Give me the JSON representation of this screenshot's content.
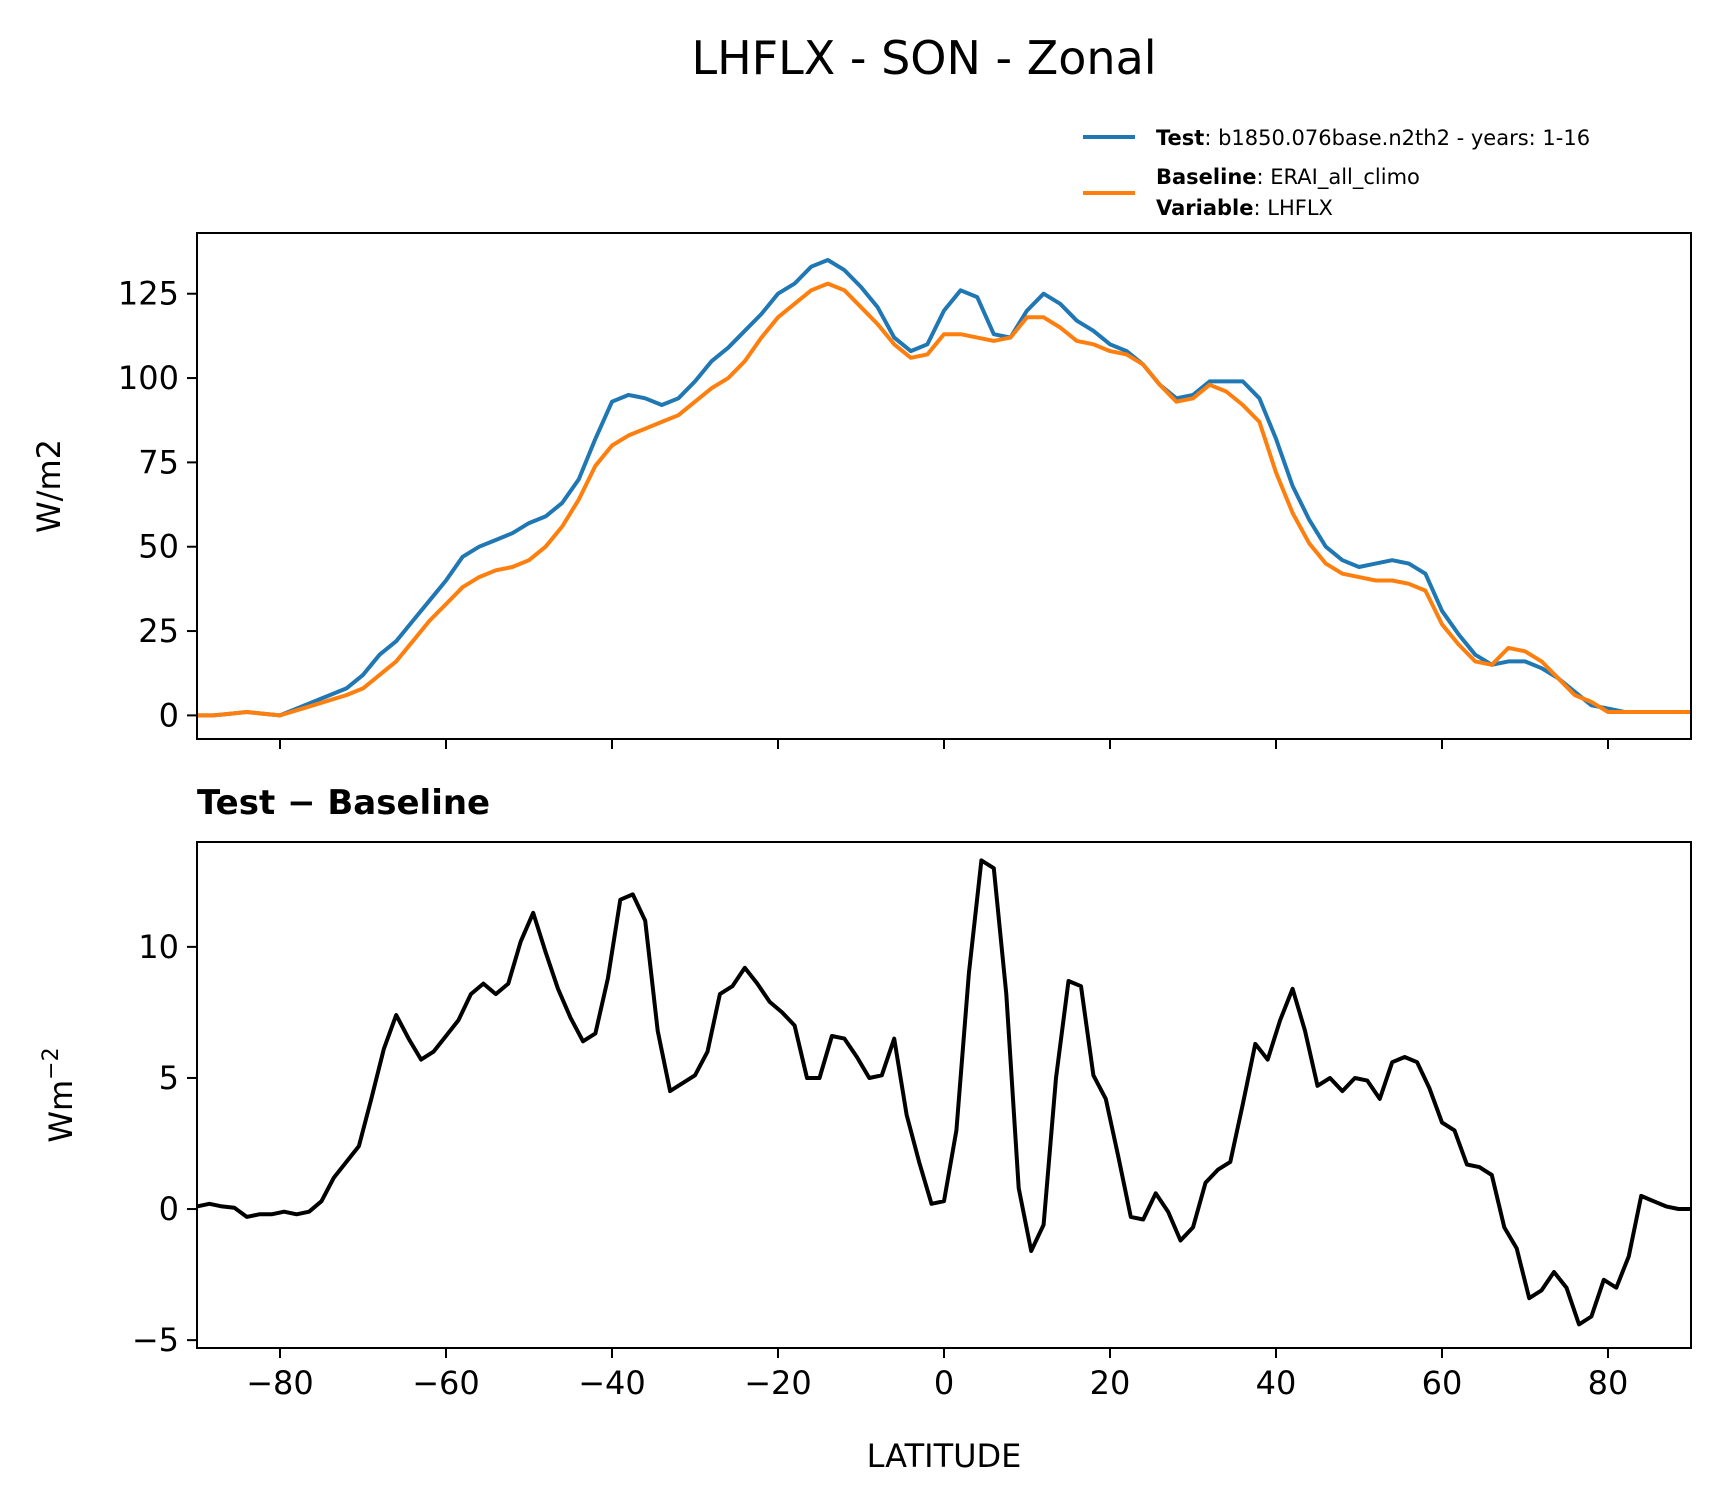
{
  "chart_data": [
    {
      "type": "line",
      "title": "LHFLX - SON - Zonal",
      "xlabel": "",
      "ylabel": "W/m2",
      "xlim": [
        -90,
        90
      ],
      "ylim": [
        -7,
        143
      ],
      "yticks": [
        0,
        25,
        50,
        75,
        100,
        125
      ],
      "ytick_labels": [
        "0",
        "25",
        "50",
        "75",
        "100",
        "125"
      ],
      "xticks": [
        -80,
        -60,
        -40,
        -20,
        0,
        20,
        40,
        60,
        80
      ],
      "legend": {
        "placement": "above-right",
        "entries": [
          {
            "key": "Test",
            "sep": ": ",
            "text": "b1850.076base.n2th2 - years: 1-16",
            "color": "#1f77b4"
          },
          {
            "key": "Baseline",
            "sep": ": ",
            "text": "ERAI_all_climo",
            "color": "#ff7f0e"
          },
          {
            "key": "Variable",
            "sep": ": ",
            "text": "LHFLX",
            "color": ""
          }
        ]
      },
      "series": [
        {
          "name": "Test",
          "color": "#1f77b4",
          "x": [
            -90,
            -88,
            -86,
            -84,
            -82,
            -80,
            -78,
            -76,
            -74,
            -72,
            -70,
            -68,
            -66,
            -64,
            -62,
            -60,
            -58,
            -56,
            -54,
            -52,
            -50,
            -48,
            -46,
            -44,
            -42,
            -40,
            -38,
            -36,
            -34,
            -32,
            -30,
            -28,
            -26,
            -24,
            -22,
            -20,
            -18,
            -16,
            -14,
            -12,
            -10,
            -8,
            -6,
            -4,
            -2,
            0,
            2,
            4,
            6,
            8,
            10,
            12,
            14,
            16,
            18,
            20,
            22,
            24,
            26,
            28,
            30,
            32,
            34,
            36,
            38,
            40,
            42,
            44,
            46,
            48,
            50,
            52,
            54,
            56,
            58,
            60,
            62,
            64,
            66,
            68,
            70,
            72,
            74,
            76,
            78,
            80,
            82,
            84,
            86,
            88,
            90
          ],
          "values": [
            0,
            0,
            0.5,
            1,
            0.5,
            0,
            2,
            4,
            6,
            8,
            12,
            18,
            22,
            28,
            34,
            40,
            47,
            50,
            52,
            54,
            57,
            59,
            63,
            70,
            82,
            93,
            95,
            94,
            92,
            94,
            99,
            105,
            109,
            114,
            119,
            125,
            128,
            133,
            135,
            132,
            127,
            121,
            112,
            108,
            110,
            120,
            126,
            124,
            113,
            112,
            120,
            125,
            122,
            117,
            114,
            110,
            108,
            104,
            98,
            94,
            95,
            99,
            99,
            99,
            94,
            82,
            68,
            58,
            50,
            46,
            44,
            45,
            46,
            45,
            42,
            31,
            24,
            18,
            15,
            16,
            16,
            14,
            11,
            7,
            3,
            2,
            1,
            1,
            1,
            1,
            1
          ]
        },
        {
          "name": "Baseline",
          "color": "#ff7f0e",
          "x": [
            -90,
            -88,
            -86,
            -84,
            -82,
            -80,
            -78,
            -76,
            -74,
            -72,
            -70,
            -68,
            -66,
            -64,
            -62,
            -60,
            -58,
            -56,
            -54,
            -52,
            -50,
            -48,
            -46,
            -44,
            -42,
            -40,
            -38,
            -36,
            -34,
            -32,
            -30,
            -28,
            -26,
            -24,
            -22,
            -20,
            -18,
            -16,
            -14,
            -12,
            -10,
            -8,
            -6,
            -4,
            -2,
            0,
            2,
            4,
            6,
            8,
            10,
            12,
            14,
            16,
            18,
            20,
            22,
            24,
            26,
            28,
            30,
            32,
            34,
            36,
            38,
            40,
            42,
            44,
            46,
            48,
            50,
            52,
            54,
            56,
            58,
            60,
            62,
            64,
            66,
            68,
            70,
            72,
            74,
            76,
            78,
            80,
            82,
            84,
            86,
            88,
            90
          ],
          "values": [
            0,
            0,
            0.5,
            1,
            0.5,
            0,
            1.5,
            3,
            4.5,
            6,
            8,
            12,
            16,
            22,
            28,
            33,
            38,
            41,
            43,
            44,
            46,
            50,
            56,
            64,
            74,
            80,
            83,
            85,
            87,
            89,
            93,
            97,
            100,
            105,
            112,
            118,
            122,
            126,
            128,
            126,
            121,
            116,
            110,
            106,
            107,
            113,
            113,
            112,
            111,
            112,
            118,
            118,
            115,
            111,
            110,
            108,
            107,
            104,
            98,
            93,
            94,
            98,
            96,
            92,
            87,
            72,
            60,
            51,
            45,
            42,
            41,
            40,
            40,
            39,
            37,
            27,
            21,
            16,
            15,
            20,
            19,
            16,
            11,
            6,
            4,
            1,
            1,
            1,
            1,
            1,
            1
          ]
        }
      ]
    },
    {
      "type": "line",
      "title": "Test − Baseline",
      "xlabel": "LATITUDE",
      "ylabel": "Wm",
      "ylabel_sup": "−2",
      "xlim": [
        -90,
        90
      ],
      "ylim": [
        -5.3,
        14
      ],
      "yticks": [
        -5,
        0,
        5,
        10
      ],
      "ytick_labels": [
        "−5",
        "0",
        "5",
        "10"
      ],
      "xticks": [
        -80,
        -60,
        -40,
        -20,
        0,
        20,
        40,
        60,
        80
      ],
      "xtick_labels": [
        "−80",
        "−60",
        "−40",
        "−20",
        "0",
        "20",
        "40",
        "60",
        "80"
      ],
      "series": [
        {
          "name": "Test − Baseline",
          "color": "#000000",
          "x": [
            -90,
            -88.5,
            -87,
            -85.5,
            -84,
            -82.5,
            -81,
            -79.5,
            -78,
            -76.5,
            -75,
            -73.5,
            -72,
            -70.5,
            -69,
            -67.5,
            -66,
            -64.5,
            -63,
            -61.5,
            -60,
            -58.5,
            -57,
            -55.5,
            -54,
            -52.5,
            -51,
            -49.5,
            -48,
            -46.5,
            -45,
            -43.5,
            -42,
            -40.5,
            -39,
            -37.5,
            -36,
            -34.5,
            -33,
            -31.5,
            -30,
            -28.5,
            -27,
            -25.5,
            -24,
            -22.5,
            -21,
            -19.5,
            -18,
            -16.5,
            -15,
            -13.5,
            -12,
            -10.5,
            -9,
            -7.5,
            -6,
            -4.5,
            -3,
            -1.5,
            0,
            1.5,
            3,
            4.5,
            6,
            7.5,
            9,
            10.5,
            12,
            13.5,
            15,
            16.5,
            18,
            19.5,
            21,
            22.5,
            24,
            25.5,
            27,
            28.5,
            30,
            31.5,
            33,
            34.5,
            36,
            37.5,
            39,
            40.5,
            42,
            43.5,
            45,
            46.5,
            48,
            49.5,
            51,
            52.5,
            54,
            55.5,
            57,
            58.5,
            60,
            61.5,
            63,
            64.5,
            66,
            67.5,
            69,
            70.5,
            72,
            73.5,
            75,
            76.5,
            78,
            79.5,
            81,
            82.5,
            84,
            85.5,
            87,
            88.5,
            90
          ],
          "values": [
            0.1,
            0.2,
            0.1,
            0.05,
            -0.3,
            -0.2,
            -0.2,
            -0.1,
            -0.2,
            -0.1,
            0.3,
            1.2,
            1.8,
            2.4,
            4.2,
            6.1,
            7.4,
            6.5,
            5.7,
            6.0,
            6.6,
            7.2,
            8.2,
            8.6,
            8.2,
            8.6,
            10.2,
            11.3,
            9.8,
            8.4,
            7.3,
            6.4,
            6.7,
            8.8,
            11.8,
            12.0,
            11.0,
            6.8,
            4.5,
            4.8,
            5.1,
            6.0,
            8.2,
            8.5,
            9.2,
            8.6,
            7.9,
            7.5,
            7.0,
            5.0,
            5.0,
            6.6,
            6.5,
            5.8,
            5.0,
            5.1,
            6.5,
            3.6,
            1.8,
            0.2,
            0.3,
            3.0,
            9.0,
            13.3,
            13.0,
            8.2,
            0.8,
            -1.6,
            -0.6,
            5.0,
            8.7,
            8.5,
            5.1,
            4.2,
            2.0,
            -0.3,
            -0.4,
            0.6,
            -0.1,
            -1.2,
            -0.7,
            1.0,
            1.5,
            1.8,
            4.0,
            6.3,
            5.7,
            7.2,
            8.4,
            6.8,
            4.7,
            5.0,
            4.5,
            5.0,
            4.9,
            4.2,
            5.6,
            5.8,
            5.6,
            4.6,
            3.3,
            3.0,
            1.7,
            1.6,
            1.3,
            -0.7,
            -1.5,
            -3.4,
            -3.1,
            -2.4,
            -3.0,
            -4.4,
            -4.1,
            -2.7,
            -3.0,
            -1.8,
            0.5,
            0.3,
            0.1,
            0.0,
            0.0
          ]
        }
      ]
    }
  ]
}
